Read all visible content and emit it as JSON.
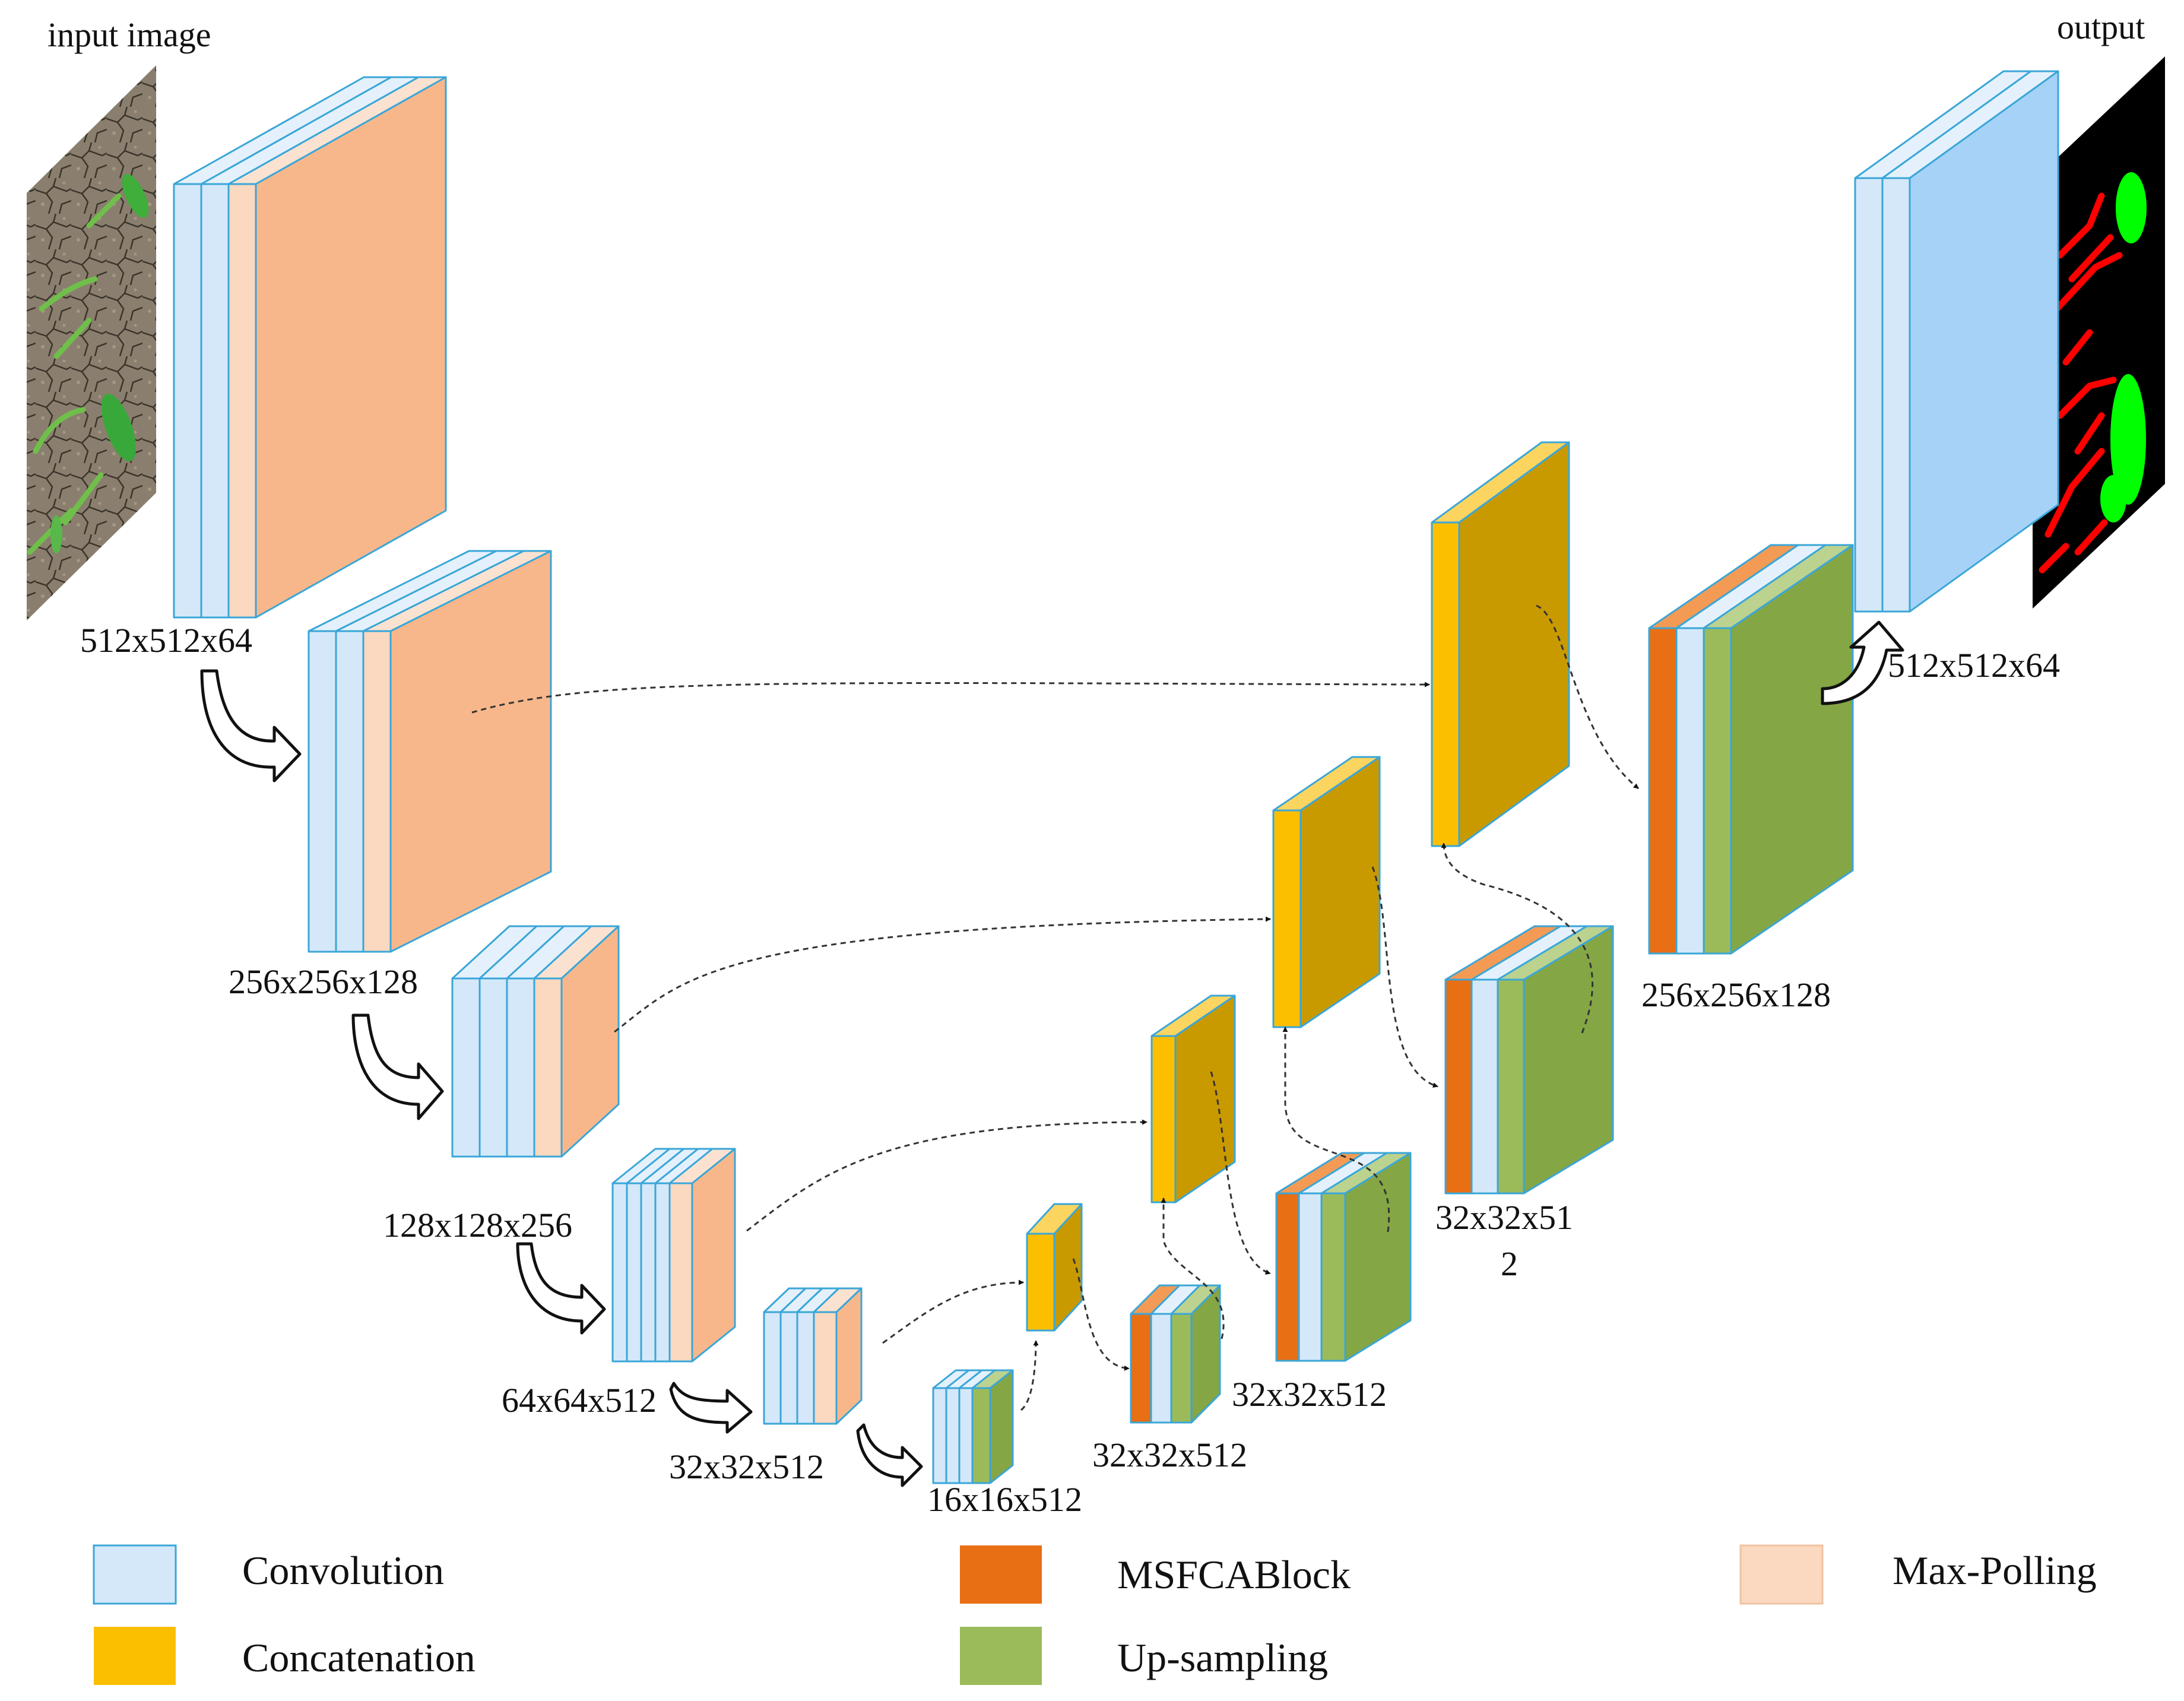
{
  "title_labels": {
    "input": "input image",
    "output": "output"
  },
  "dimension_labels": {
    "enc1": "512x512x64",
    "enc2": "256x256x128",
    "enc3": "128x128x256",
    "enc4": "64x64x512",
    "enc5": "32x32x512",
    "bottleneck": "16x16x512",
    "dec4": "32x32x512",
    "dec3": "32x32x512",
    "dec2_line1": "32x32x51",
    "dec2_line2": "2",
    "dec1": "256x256x128",
    "out": "512x512x64"
  },
  "legend": {
    "convolution": "Convolution",
    "concatenation": "Concatenation",
    "msfcablock": "MSFCABlock",
    "upsampling": "Up-sampling",
    "maxpooling": "Max-Polling"
  },
  "colors": {
    "convolution": "#d4e8f9",
    "convolution_edge": "#3aa6d8",
    "maxpool": "#f8b78b",
    "maxpool_light": "#fbd8c0",
    "concatenation": "#fcbf00",
    "concatenation_side": "#c99900",
    "msfca": "#e86f14",
    "upsampling": "#9bbb5a",
    "upsampling_side": "#84a645",
    "output_side": "#a7d2f7"
  },
  "icons": {
    "downsample_arrow": "curved-hollow-arrow-icon",
    "connection": "dashed-arrow-icon"
  }
}
